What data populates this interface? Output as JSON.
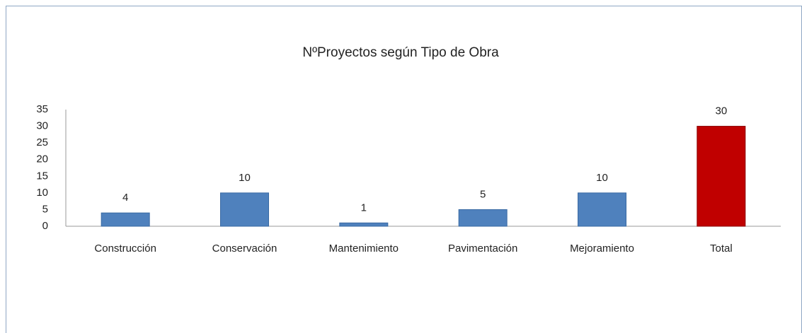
{
  "chart_data": {
    "type": "bar",
    "title": "NºProyectos según Tipo de Obra",
    "categories": [
      "Construcción",
      "Conservación",
      "Mantenimiento",
      "Pavimentación",
      "Mejoramiento",
      "Total"
    ],
    "values": [
      4,
      10,
      1,
      5,
      10,
      30
    ],
    "colors": [
      "#4f81bd",
      "#4f81bd",
      "#4f81bd",
      "#4f81bd",
      "#4f81bd",
      "#c00000"
    ],
    "ylim": [
      0,
      35
    ],
    "yticks": [
      0,
      5,
      10,
      15,
      20,
      25,
      30,
      35
    ],
    "grid": false
  }
}
